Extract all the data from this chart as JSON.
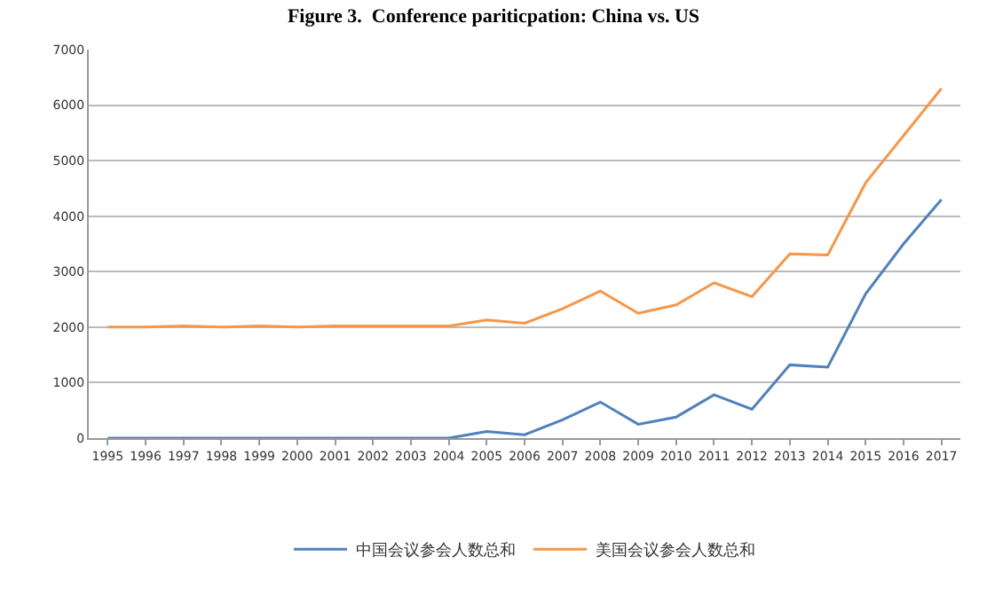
{
  "chart_data": {
    "type": "line",
    "title": "Figure 3.  Conference pariticpation: China vs. US",
    "categories": [
      "1995",
      "1996",
      "1997",
      "1998",
      "1999",
      "2000",
      "2001",
      "2002",
      "2003",
      "2004",
      "2005",
      "2006",
      "2007",
      "2008",
      "2009",
      "2010",
      "2011",
      "2012",
      "2013",
      "2014",
      "2015",
      "2016",
      "2017"
    ],
    "series": [
      {
        "name": "中国会议参会人数总和",
        "color": "#4f81bd",
        "values": [
          0,
          0,
          0,
          0,
          0,
          0,
          0,
          0,
          0,
          0,
          120,
          60,
          330,
          650,
          250,
          380,
          780,
          520,
          1320,
          1280,
          2600,
          3500,
          4300
        ]
      },
      {
        "name": "美国会议参会人数总和",
        "color": "#f79646",
        "values": [
          2000,
          2000,
          2020,
          2000,
          2020,
          2000,
          2020,
          2020,
          2020,
          2020,
          2130,
          2070,
          2330,
          2650,
          2250,
          2400,
          2800,
          2550,
          3320,
          3300,
          4600,
          5450,
          6300
        ]
      }
    ],
    "ylim": [
      0,
      7000
    ],
    "yticks": [
      0,
      1000,
      2000,
      3000,
      4000,
      5000,
      6000,
      7000
    ],
    "grid": "y",
    "legend": "bottom",
    "marker": "none",
    "line_style": "solid"
  }
}
